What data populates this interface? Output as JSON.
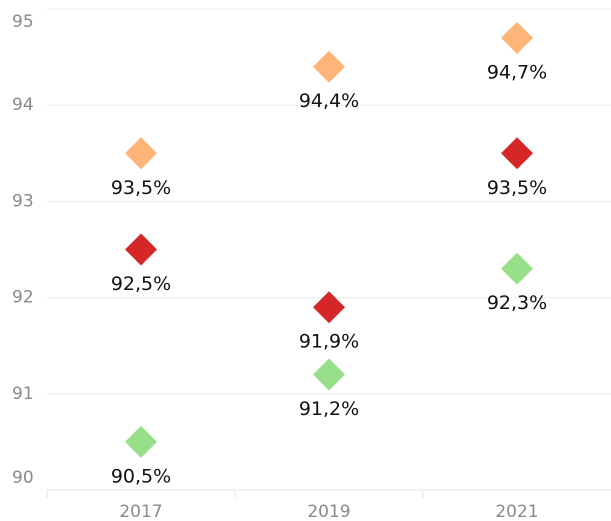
{
  "chart_data": {
    "type": "scatter",
    "categories": [
      "2017",
      "2019",
      "2021"
    ],
    "series": [
      {
        "color": "#ffb577",
        "values": [
          93.5,
          94.4,
          94.7
        ],
        "value_labels": [
          "93,5%",
          "94,4%",
          "94,7%"
        ]
      },
      {
        "color": "#d62728",
        "values": [
          92.5,
          91.9,
          93.5
        ],
        "value_labels": [
          "92,5%",
          "91,9%",
          "93,5%"
        ]
      },
      {
        "color": "#98df8a",
        "values": [
          90.5,
          91.2,
          92.3
        ],
        "value_labels": [
          "90,5%",
          "91,2%",
          "92,3%"
        ]
      }
    ],
    "ylim": [
      90,
      95
    ],
    "yticks": [
      90,
      91,
      92,
      93,
      94,
      95
    ],
    "grid": true,
    "marker": "diamond"
  }
}
